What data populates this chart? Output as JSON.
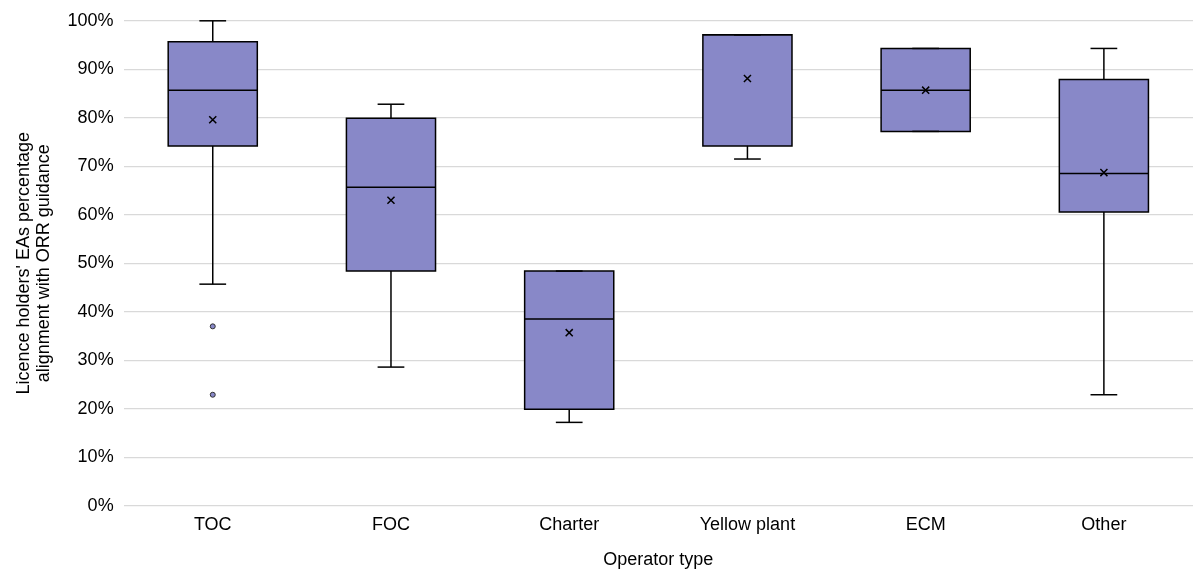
{
  "chart_data": {
    "type": "box",
    "xlabel": "Operator type",
    "ylabel": "Licence holders' EAs percentage alignment with ORR guidance",
    "categories": [
      "TOC",
      "FOC",
      "Charter",
      "Yellow plant",
      "ECM",
      "Other"
    ],
    "color": "#8888c8",
    "boxes": [
      {
        "low": 45.7,
        "q1": 74.2,
        "median": 85.7,
        "q3": 95.7,
        "high": 100,
        "mean": 79.6,
        "outliers": [
          37.0,
          22.9
        ]
      },
      {
        "low": 28.6,
        "q1": 48.4,
        "median": 65.7,
        "q3": 79.9,
        "high": 82.8,
        "mean": 63.0
      },
      {
        "low": 17.2,
        "q1": 19.9,
        "median": 38.5,
        "q3": 48.4,
        "high": 48.4,
        "mean": 35.7
      },
      {
        "low": 71.5,
        "q1": 74.2,
        "median": 97.1,
        "q3": 97.1,
        "high": 97.1,
        "mean": 88.1
      },
      {
        "low": 77.2,
        "q1": 77.2,
        "median": 85.7,
        "q3": 94.3,
        "high": 94.3,
        "mean": 85.7
      },
      {
        "low": 22.9,
        "q1": 60.6,
        "median": 68.5,
        "q3": 87.9,
        "high": 94.3,
        "mean": 68.7
      }
    ],
    "ylim": [
      0,
      100
    ],
    "yticks": [
      {
        "value": 0,
        "label": "0%"
      },
      {
        "value": 10,
        "label": "10%"
      },
      {
        "value": 20,
        "label": "20%"
      },
      {
        "value": 30,
        "label": "30%"
      },
      {
        "value": 40,
        "label": "40%"
      },
      {
        "value": 50,
        "label": "50%"
      },
      {
        "value": 60,
        "label": "60%"
      },
      {
        "value": 70,
        "label": "70%"
      },
      {
        "value": 80,
        "label": "80%"
      },
      {
        "value": 90,
        "label": "90%"
      },
      {
        "value": 100,
        "label": "100%"
      }
    ],
    "grid": "y"
  }
}
